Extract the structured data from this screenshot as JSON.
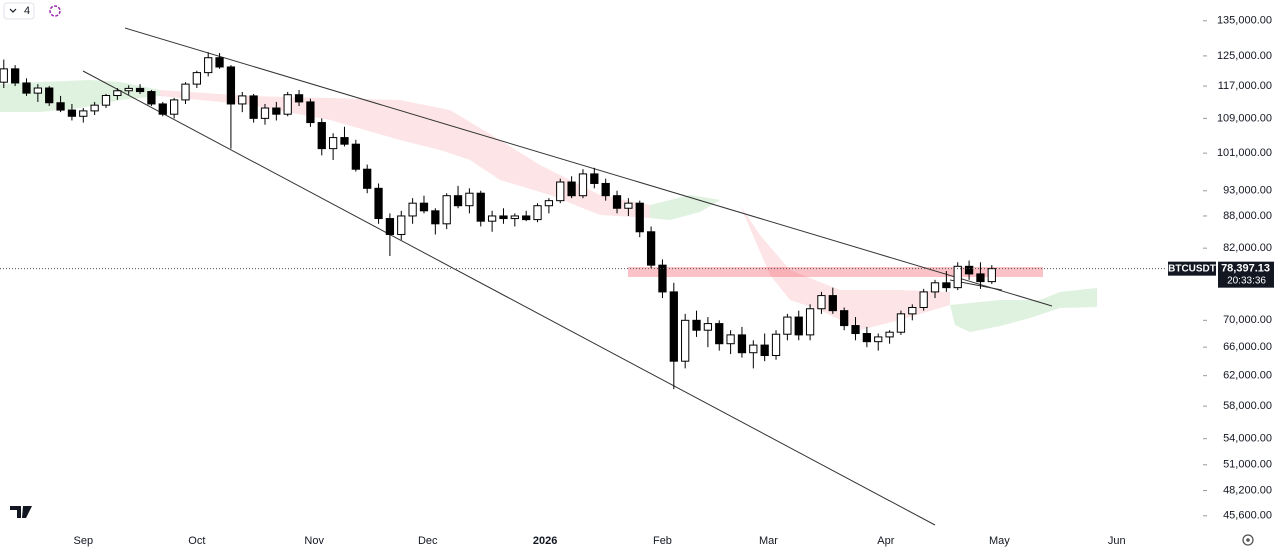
{
  "toolbar": {
    "interval": "4"
  },
  "chart_data": {
    "type": "candlestick",
    "symbol": "BTCUSDT",
    "x": [
      -21,
      -18,
      -15,
      -12,
      -9,
      -6,
      -3,
      0,
      3,
      6,
      9,
      12,
      15,
      18,
      21,
      24,
      27,
      30,
      33,
      36,
      39,
      42,
      45,
      48,
      51,
      54,
      57,
      60,
      63,
      66,
      69,
      72,
      75,
      78,
      81,
      84,
      87,
      90,
      93,
      96,
      99,
      102,
      105,
      108,
      111,
      114,
      117,
      120,
      123,
      126,
      129,
      132,
      135,
      138,
      141,
      144,
      147,
      150,
      153,
      156,
      159,
      162,
      165,
      168,
      171,
      174,
      177,
      180,
      183,
      186,
      189,
      192,
      195,
      198,
      201,
      204,
      207,
      210,
      213,
      216,
      219,
      222,
      225,
      228,
      231,
      234,
      237,
      240
    ],
    "open": [
      118000,
      121500,
      117800,
      115200,
      116500,
      112800,
      111000,
      109500,
      110800,
      112200,
      114600,
      115800,
      116400,
      115600,
      112500,
      110000,
      113500,
      117500,
      120500,
      124500,
      122000,
      112500,
      114500,
      109000,
      111500,
      110000,
      114800,
      113000,
      108000,
      102000,
      104500,
      103000,
      97500,
      93500,
      87500,
      84500,
      88000,
      90500,
      89000,
      86500,
      92000,
      90000,
      92500,
      87000,
      88000,
      87500,
      88000,
      87300,
      90000,
      91000,
      94800,
      92000,
      96500,
      94500,
      92000,
      89500,
      90500,
      85000,
      79000,
      74500,
      64000,
      70000,
      68500,
      69500,
      66500,
      67800,
      65200,
      66300,
      64800,
      67900,
      70500,
      67800,
      71800,
      73900,
      71500,
      69200,
      68000,
      66800,
      67500,
      68200,
      71000,
      72000,
      74500,
      76000,
      75200,
      78800,
      77500,
      76200
    ],
    "high": [
      124000,
      122500,
      119000,
      117500,
      117000,
      114500,
      112500,
      111500,
      113000,
      115000,
      116500,
      117200,
      117500,
      116000,
      113000,
      114000,
      118000,
      121000,
      126000,
      125800,
      122500,
      115500,
      115000,
      112500,
      113000,
      115500,
      116000,
      113800,
      109000,
      105500,
      107000,
      104000,
      98500,
      94500,
      88500,
      89000,
      91500,
      92000,
      89500,
      92500,
      94000,
      93500,
      93000,
      89000,
      89500,
      88500,
      89000,
      90500,
      91500,
      95500,
      96000,
      97500,
      97800,
      95500,
      93000,
      91500,
      91000,
      86000,
      80000,
      76000,
      71000,
      71500,
      70500,
      70000,
      68500,
      69000,
      67000,
      68000,
      68500,
      71000,
      71500,
      72500,
      74500,
      75200,
      72000,
      70500,
      69000,
      68000,
      68500,
      71500,
      72500,
      75000,
      76500,
      78000,
      79500,
      79800,
      79500,
      79000
    ],
    "low": [
      116500,
      117000,
      114500,
      113000,
      112000,
      110500,
      108500,
      108000,
      109800,
      111500,
      113500,
      114800,
      115000,
      112000,
      109500,
      109000,
      112500,
      116500,
      119500,
      121500,
      102000,
      110500,
      108000,
      107500,
      108500,
      109500,
      112000,
      107000,
      100500,
      99500,
      102500,
      97000,
      92500,
      86500,
      80600,
      83500,
      86500,
      88500,
      84500,
      85500,
      89500,
      88500,
      86000,
      85000,
      86500,
      86000,
      87000,
      86800,
      88500,
      90500,
      91500,
      91500,
      93500,
      91000,
      88500,
      88000,
      84000,
      78500,
      73500,
      60200,
      63000,
      67500,
      66000,
      65500,
      65000,
      64500,
      63000,
      64000,
      64200,
      67000,
      67000,
      67000,
      71000,
      71000,
      68500,
      67000,
      66000,
      65500,
      66500,
      67800,
      70000,
      71500,
      73500,
      74500,
      74800,
      76500,
      75000,
      75800
    ],
    "close": [
      121500,
      117800,
      115200,
      116500,
      112800,
      111000,
      109500,
      110800,
      112200,
      114600,
      115800,
      116400,
      115600,
      112500,
      110000,
      113500,
      117500,
      120500,
      124500,
      122000,
      112500,
      114500,
      109000,
      111500,
      110000,
      114800,
      113000,
      108000,
      102000,
      104500,
      103000,
      97500,
      93500,
      87500,
      84500,
      88000,
      90500,
      89000,
      86500,
      92000,
      90000,
      92500,
      87000,
      88000,
      87500,
      88000,
      87300,
      90000,
      91000,
      94800,
      92000,
      96500,
      94500,
      92000,
      89500,
      90500,
      85000,
      79000,
      74500,
      64000,
      70000,
      68500,
      69500,
      66500,
      67800,
      65200,
      66300,
      64800,
      67900,
      70500,
      67800,
      71800,
      73900,
      71500,
      69200,
      68000,
      66800,
      67500,
      68200,
      71000,
      72000,
      74500,
      76000,
      75200,
      78800,
      77500,
      76200,
      78397.13
    ],
    "colors": {
      "up": "#ffffff",
      "down": "#000000",
      "wick": "#000000"
    },
    "log_scale": true,
    "ylim": [
      44200,
      141300
    ],
    "yticks": [
      {
        "value": 45600,
        "label": "45,600.00"
      },
      {
        "value": 48200,
        "label": "48,200.00"
      },
      {
        "value": 51000,
        "label": "51,000.00"
      },
      {
        "value": 54000,
        "label": "54,000.00"
      },
      {
        "value": 58000,
        "label": "58,000.00"
      },
      {
        "value": 62000,
        "label": "62,000.00"
      },
      {
        "value": 66000,
        "label": "66,000.00"
      },
      {
        "value": 70000,
        "label": "70,000.00"
      },
      {
        "value": 82000,
        "label": "82,000.00"
      },
      {
        "value": 88000,
        "label": "88,000.00"
      },
      {
        "value": 93000,
        "label": "93,000.00"
      },
      {
        "value": 101000,
        "label": "101,000.00"
      },
      {
        "value": 109000,
        "label": "109,000.00"
      },
      {
        "value": 117000,
        "label": "117,000.00"
      },
      {
        "value": 125000,
        "label": "125,000.00"
      },
      {
        "value": 135000,
        "label": "135,000.00"
      }
    ],
    "xlim": [
      -22,
      295
    ],
    "xticks": [
      {
        "value": 0,
        "label": "Sep"
      },
      {
        "value": 30,
        "label": "Oct"
      },
      {
        "value": 61,
        "label": "Nov"
      },
      {
        "value": 91,
        "label": "Dec"
      },
      {
        "value": 122,
        "label": "2026"
      },
      {
        "value": 153,
        "label": "Feb"
      },
      {
        "value": 181,
        "label": "Mar"
      },
      {
        "value": 212,
        "label": "Apr"
      },
      {
        "value": 242,
        "label": "May"
      },
      {
        "value": 273,
        "label": "Jun"
      }
    ],
    "last_price": {
      "value": 78397.13,
      "label": "78,397.13"
    },
    "countdown": "20:33:36"
  }
}
